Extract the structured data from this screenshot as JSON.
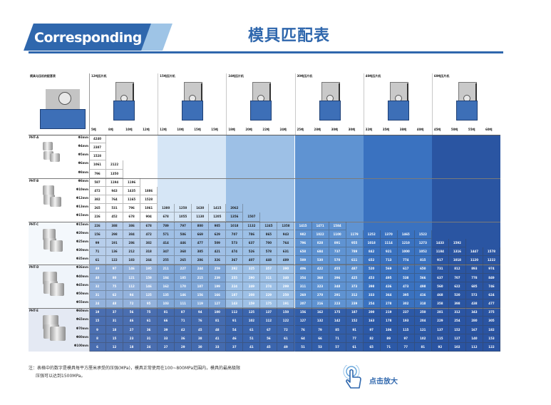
{
  "header": {
    "banner_text": "Corresponding",
    "title": "模具匹配表",
    "brand_color": "#2f67ad"
  },
  "table": {
    "corner_label": "模具与压机的配套表",
    "presses": [
      {
        "label": "12吨压片机",
        "dies": [
          "5吨",
          "8吨",
          "10吨",
          "12吨"
        ]
      },
      {
        "label": "15吨压片机",
        "dies": [
          "12吨",
          "10吨",
          "15吨",
          "15吨"
        ]
      },
      {
        "label": "24吨压片机",
        "dies": [
          "18吨",
          "20吨",
          "22吨",
          "24吨"
        ]
      },
      {
        "label": "30吨压片机",
        "dies": [
          "25吨",
          "28吨",
          "30吨",
          "30吨"
        ]
      },
      {
        "label": "40吨压片机",
        "dies": [
          "32吨",
          "35吨",
          "38吨",
          "40吨"
        ]
      },
      {
        "label": "60吨压片机",
        "dies": [
          "45吨",
          "50吨",
          "55吨",
          "60吨"
        ]
      }
    ],
    "molds": [
      {
        "name": "PHT-A",
        "rows": [
          {
            "size": "Φ3mm",
            "values": [
              "4240"
            ]
          },
          {
            "size": "Φ4mm",
            "values": [
              "2387"
            ]
          },
          {
            "size": "Φ5mm",
            "values": [
              "1528"
            ]
          },
          {
            "size": "Φ6mm",
            "values": [
              "1061",
              "2122"
            ]
          },
          {
            "size": "Φ8mm",
            "values": [
              "796",
              "1350"
            ]
          }
        ]
      },
      {
        "name": "PHT-B",
        "rows": [
          {
            "size": "Φ8mm",
            "values": [
              "587",
              "1194",
              "1196"
            ]
          },
          {
            "size": "Φ10mm",
            "values": [
              "472",
              "943",
              "1435",
              "1886"
            ]
          },
          {
            "size": "Φ12mm",
            "values": [
              "382",
              "764",
              "1165",
              "1528"
            ]
          },
          {
            "size": "Φ13mm",
            "values": [
              "265",
              "531",
              "796",
              "1061",
              "1380",
              "1250",
              "1630",
              "1415",
              "2062"
            ]
          },
          {
            "size": "Φ15mm",
            "values": [
              "226",
              "452",
              "678",
              "904",
              "678",
              "1055",
              "1130",
              "1205",
              "1356",
              "1507"
            ]
          }
        ]
      },
      {
        "name": "PHT-C",
        "rows": [
          {
            "size": "Φ15mm",
            "values": [
              "226",
              "388",
              "386",
              "678",
              "789",
              "797",
              "800",
              "905",
              "1018",
              "1132",
              "1245",
              "1358",
              "1415",
              "1471",
              "1584"
            ]
          },
          {
            "size": "Φ20mm",
            "values": [
              "156",
              "298",
              "384",
              "472",
              "571",
              "586",
              "669",
              "629",
              "707",
              "786",
              "865",
              "943",
              "982",
              "1022",
              "1100",
              "1179",
              "1252",
              "1370",
              "1465",
              "1522"
            ]
          },
          {
            "size": "Φ25mm",
            "values": [
              "99",
              "191",
              "286",
              "382",
              "414",
              "446",
              "477",
              "509",
              "573",
              "637",
              "700",
              "764",
              "796",
              "828",
              "891",
              "955",
              "1018",
              "1114",
              "1210",
              "1273",
              "1433",
              "1592"
            ]
          },
          {
            "size": "Φ30mm",
            "values": [
              "71",
              "136",
              "212",
              "318",
              "347",
              "368",
              "385",
              "421",
              "474",
              "526",
              "578",
              "631",
              "658",
              "684",
              "737",
              "789",
              "842",
              "921",
              "1000",
              "1052",
              "1184",
              "1316",
              "1447",
              "1578"
            ]
          },
          {
            "size": "Φ35mm",
            "values": [
              "61",
              "122",
              "183",
              "244",
              "255",
              "265",
              "286",
              "326",
              "367",
              "407",
              "448",
              "489",
              "509",
              "530",
              "570",
              "611",
              "652",
              "713",
              "774",
              "815",
              "917",
              "1018",
              "1120",
              "1222"
            ]
          }
        ]
      },
      {
        "name": "PHT-D",
        "rows": [
          {
            "size": "Φ36mm",
            "values": [
              "49",
              "97",
              "146",
              "195",
              "211",
              "227",
              "244",
              "259",
              "292",
              "325",
              "357",
              "390",
              "406",
              "422",
              "455",
              "487",
              "520",
              "569",
              "617",
              "650",
              "731",
              "812",
              "893",
              "974"
            ]
          },
          {
            "size": "Φ40mm",
            "values": [
              "40",
              "80",
              "121",
              "159",
              "184",
              "185",
              "215",
              "239",
              "255",
              "290",
              "311",
              "340",
              "354",
              "368",
              "396",
              "425",
              "453",
              "495",
              "538",
              "566",
              "637",
              "707",
              "778",
              "849"
            ]
          },
          {
            "size": "Φ45mm",
            "values": [
              "32",
              "75",
              "112",
              "146",
              "162",
              "170",
              "187",
              "199",
              "224",
              "249",
              "274",
              "299",
              "311",
              "323",
              "348",
              "373",
              "398",
              "436",
              "473",
              "498",
              "560",
              "622",
              "685",
              "746"
            ]
          },
          {
            "size": "Φ50mm",
            "values": [
              "31",
              "62",
              "94",
              "125",
              "135",
              "146",
              "156",
              "166",
              "187",
              "208",
              "229",
              "250",
              "260",
              "270",
              "291",
              "312",
              "333",
              "364",
              "395",
              "416",
              "468",
              "520",
              "572",
              "624"
            ]
          },
          {
            "size": "Φ55mm",
            "values": [
              "24",
              "48",
              "72",
              "95",
              "103",
              "111",
              "119",
              "127",
              "143",
              "159",
              "175",
              "191",
              "207",
              "216",
              "223",
              "239",
              "254",
              "278",
              "302",
              "318",
              "358",
              "398",
              "438",
              "477"
            ]
          }
        ]
      },
      {
        "name": "PHT-E",
        "rows": [
          {
            "size": "Φ60mm",
            "values": [
              "19",
              "37",
              "56",
              "75",
              "81",
              "87",
              "94",
              "100",
              "112",
              "125",
              "137",
              "150",
              "156",
              "162",
              "175",
              "187",
              "200",
              "219",
              "237",
              "250",
              "281",
              "312",
              "343",
              "375"
            ]
          },
          {
            "size": "Φ65mm",
            "values": [
              "15",
              "31",
              "46",
              "61",
              "66",
              "71",
              "76",
              "81",
              "91",
              "102",
              "112",
              "122",
              "127",
              "132",
              "142",
              "152",
              "163",
              "178",
              "193",
              "204",
              "229",
              "254",
              "280",
              "305"
            ]
          },
          {
            "size": "Φ70mm",
            "values": [
              "9",
              "18",
              "27",
              "36",
              "39",
              "42",
              "45",
              "48",
              "54",
              "61",
              "67",
              "72",
              "76",
              "79",
              "85",
              "91",
              "97",
              "106",
              "115",
              "121",
              "137",
              "152",
              "167",
              "182"
            ]
          },
          {
            "size": "Φ80mm",
            "values": [
              "8",
              "15",
              "23",
              "31",
              "33",
              "36",
              "38",
              "41",
              "46",
              "51",
              "56",
              "61",
              "64",
              "66",
              "71",
              "77",
              "82",
              "89",
              "97",
              "102",
              "115",
              "127",
              "140",
              "153"
            ]
          },
          {
            "size": "Φ100mm",
            "values": [
              "6",
              "12",
              "18",
              "24",
              "27",
              "29",
              "30",
              "33",
              "37",
              "41",
              "45",
              "49",
              "51",
              "53",
              "57",
              "61",
              "65",
              "71",
              "77",
              "81",
              "92",
              "102",
              "112",
              "122"
            ]
          }
        ]
      }
    ]
  },
  "note": {
    "line1": "注：表格中的数字是模具每平方厘米承受的压强(MPa)，模具正常使用在100~800MPa范围内，模具的最高极限",
    "line2": "压强可以达到1500MPa。"
  },
  "zoom": {
    "label": "点击放大",
    "icon": "hand-pointer-icon"
  },
  "colors": {
    "band1": "#ffffff",
    "band2": "#d6e6f6",
    "band3": "#9dc0e6",
    "band4": "#5f93d2",
    "band5": "#3a72c0",
    "band6": "#2a55a2"
  }
}
